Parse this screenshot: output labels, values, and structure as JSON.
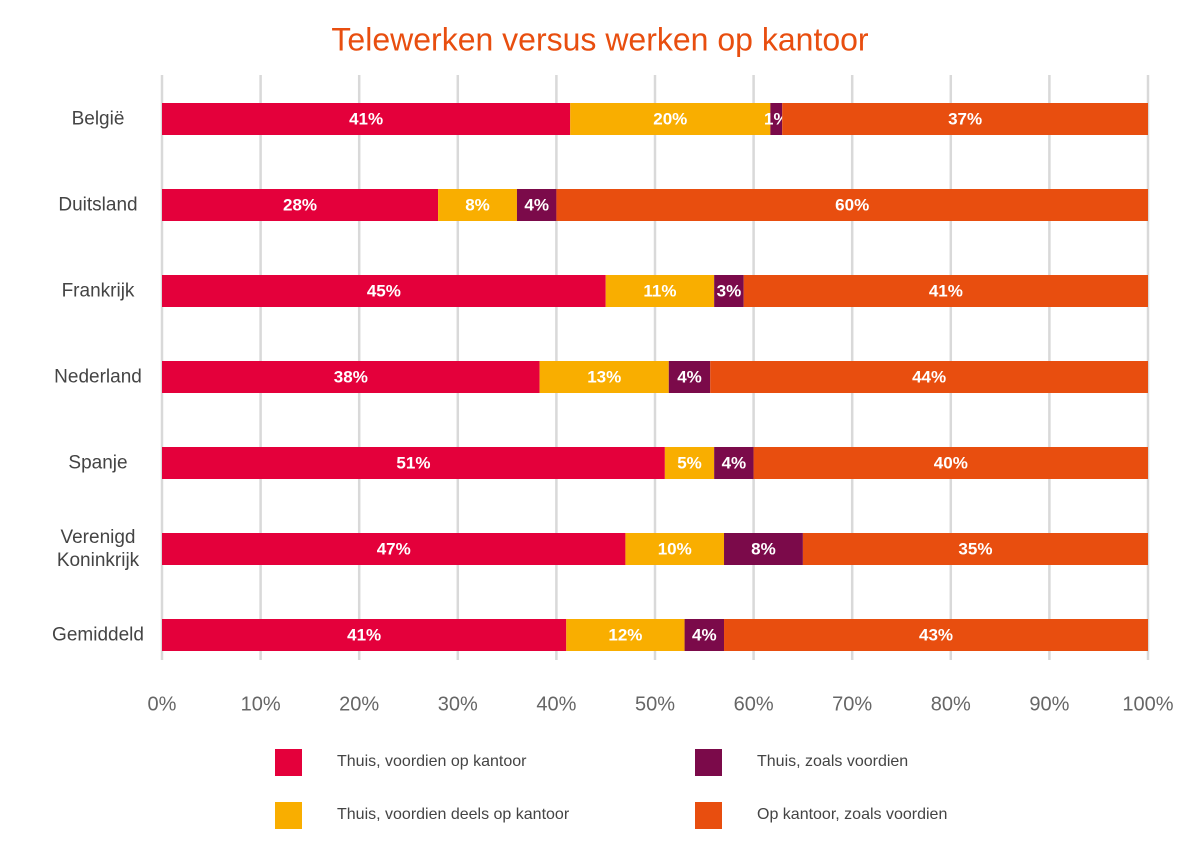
{
  "chart_data": {
    "type": "stacked-bar-horizontal",
    "title": "Telewerken versus werken op kantoor",
    "categories": [
      "België",
      "Duitsland",
      "Frankrijk",
      "Nederland",
      "Spanje",
      "Verenigd Koninkrijk",
      "Gemiddeld"
    ],
    "series": [
      {
        "name": "Thuis, voordien op kantoor",
        "color": "#e4003b",
        "values": [
          41.4,
          28,
          45,
          38.3,
          51,
          47,
          41
        ],
        "value_labels": [
          "41%",
          "28%",
          "45%",
          "38%",
          "51%",
          "47%",
          "41%"
        ]
      },
      {
        "name": "Thuis, voordien deels op kantoor",
        "color": "#f9ae00",
        "values": [
          20.3,
          8,
          11,
          13.1,
          5,
          10,
          12
        ],
        "value_labels": [
          "20%",
          "8%",
          "11%",
          "13%",
          "5%",
          "10%",
          "12%"
        ]
      },
      {
        "name": "Thuis, zoals voordien",
        "color": "#7b0a4a",
        "values": [
          1.2,
          4,
          3,
          4.2,
          4,
          8,
          4
        ],
        "value_labels": [
          "1%",
          "4%",
          "3%",
          "4%",
          "4%",
          "8%",
          "4%"
        ]
      },
      {
        "name": "Op kantoor, zoals voordien",
        "color": "#e84e0f",
        "values": [
          37.1,
          60,
          41,
          44.4,
          40,
          35,
          43
        ],
        "value_labels": [
          "37%",
          "60%",
          "41%",
          "44%",
          "40%",
          "35%",
          "43%"
        ]
      }
    ],
    "xlim": [
      0,
      100
    ],
    "xticks": [
      {
        "value": 0,
        "label": "0%"
      },
      {
        "value": 10,
        "label": "10%"
      },
      {
        "value": 20,
        "label": "20%"
      },
      {
        "value": 30,
        "label": "30%"
      },
      {
        "value": 40,
        "label": "40%"
      },
      {
        "value": 50,
        "label": "50%"
      },
      {
        "value": 60,
        "label": "60%"
      },
      {
        "value": 70,
        "label": "70%"
      },
      {
        "value": 80,
        "label": "80%"
      },
      {
        "value": 90,
        "label": "90%"
      },
      {
        "value": 100,
        "label": "100%"
      }
    ],
    "grid": true,
    "legend": "bottom"
  }
}
